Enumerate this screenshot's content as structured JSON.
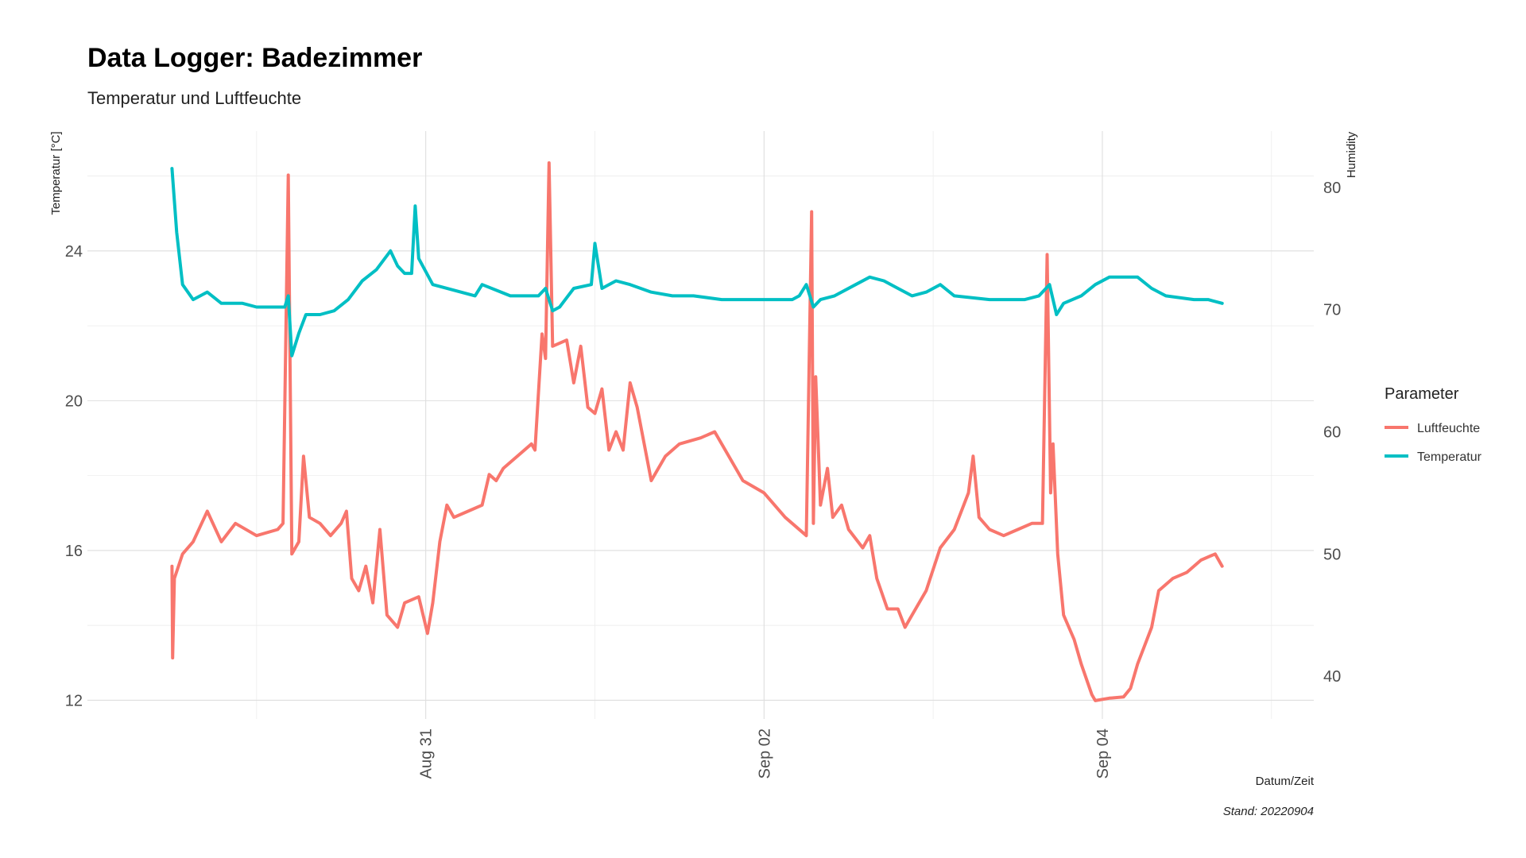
{
  "chart_data": {
    "type": "line",
    "title": "Data Logger: Badezimmer",
    "subtitle": "Temperatur und Luftfeuchte",
    "xlabel": "Datum/Zeit",
    "ylabel": "Temperatur [°C]",
    "y2label": "Humidity",
    "caption": "Stand: 20220904",
    "legend_title": "Parameter",
    "legend_position": "right",
    "grid": true,
    "x_start": "2022-08-29 12:00",
    "x_end": "2022-09-04 17:00",
    "xlim": [
      "2022-08-29 00:00",
      "2022-09-05 06:00"
    ],
    "x_ticks": [
      {
        "date": "2022-08-31",
        "label": "Aug 31"
      },
      {
        "date": "2022-09-02",
        "label": "Sep 02"
      },
      {
        "date": "2022-09-04",
        "label": "Sep 04"
      }
    ],
    "ylim": [
      11.5,
      27.2
    ],
    "y_ticks": [
      12,
      16,
      20,
      24
    ],
    "y2lim": [
      36.5,
      84.6
    ],
    "y2_ticks": [
      40,
      50,
      60,
      70,
      80
    ],
    "series": [
      {
        "name": "Luftfeuchte",
        "color": "#F8766D",
        "axis": "right",
        "points": [
          [
            "2022-08-29 12:00",
            49
          ],
          [
            "2022-08-29 12:05",
            41.5
          ],
          [
            "2022-08-29 12:20",
            48
          ],
          [
            "2022-08-29 13:30",
            50
          ],
          [
            "2022-08-29 15:00",
            51
          ],
          [
            "2022-08-29 17:00",
            53.5
          ],
          [
            "2022-08-29 19:00",
            51
          ],
          [
            "2022-08-29 21:00",
            52.5
          ],
          [
            "2022-08-30 00:00",
            51.5
          ],
          [
            "2022-08-30 03:00",
            52
          ],
          [
            "2022-08-30 03:45",
            52.5
          ],
          [
            "2022-08-30 04:30",
            81
          ],
          [
            "2022-08-30 05:00",
            50
          ],
          [
            "2022-08-30 06:00",
            51
          ],
          [
            "2022-08-30 06:40",
            58
          ],
          [
            "2022-08-30 07:30",
            53
          ],
          [
            "2022-08-30 09:00",
            52.5
          ],
          [
            "2022-08-30 10:30",
            51.5
          ],
          [
            "2022-08-30 12:00",
            52.5
          ],
          [
            "2022-08-30 12:45",
            53.5
          ],
          [
            "2022-08-30 13:30",
            48
          ],
          [
            "2022-08-30 14:30",
            47
          ],
          [
            "2022-08-30 15:30",
            49
          ],
          [
            "2022-08-30 16:30",
            46
          ],
          [
            "2022-08-30 17:30",
            52
          ],
          [
            "2022-08-30 18:30",
            45
          ],
          [
            "2022-08-30 20:00",
            44
          ],
          [
            "2022-08-30 21:00",
            46
          ],
          [
            "2022-08-30 23:00",
            46.5
          ],
          [
            "2022-08-31 00:15",
            43.5
          ],
          [
            "2022-08-31 01:00",
            46
          ],
          [
            "2022-08-31 02:00",
            51
          ],
          [
            "2022-08-31 03:00",
            54
          ],
          [
            "2022-08-31 04:00",
            53
          ],
          [
            "2022-08-31 06:00",
            53.5
          ],
          [
            "2022-08-31 08:00",
            54
          ],
          [
            "2022-08-31 09:00",
            56.5
          ],
          [
            "2022-08-31 10:00",
            56
          ],
          [
            "2022-08-31 11:00",
            57
          ],
          [
            "2022-08-31 13:00",
            58
          ],
          [
            "2022-08-31 15:00",
            59
          ],
          [
            "2022-08-31 15:30",
            58.5
          ],
          [
            "2022-08-31 16:30",
            68
          ],
          [
            "2022-08-31 17:00",
            66
          ],
          [
            "2022-08-31 17:30",
            82
          ],
          [
            "2022-08-31 18:00",
            67
          ],
          [
            "2022-08-31 20:00",
            67.5
          ],
          [
            "2022-08-31 21:00",
            64
          ],
          [
            "2022-08-31 22:00",
            67
          ],
          [
            "2022-08-31 23:00",
            62
          ],
          [
            "2022-09-01 00:00",
            61.5
          ],
          [
            "2022-09-01 01:00",
            63.5
          ],
          [
            "2022-09-01 02:00",
            58.5
          ],
          [
            "2022-09-01 03:00",
            60
          ],
          [
            "2022-09-01 04:00",
            58.5
          ],
          [
            "2022-09-01 05:00",
            64
          ],
          [
            "2022-09-01 06:00",
            62
          ],
          [
            "2022-09-01 08:00",
            56
          ],
          [
            "2022-09-01 10:00",
            58
          ],
          [
            "2022-09-01 12:00",
            59
          ],
          [
            "2022-09-01 15:00",
            59.5
          ],
          [
            "2022-09-01 17:00",
            60
          ],
          [
            "2022-09-01 18:30",
            58.5
          ],
          [
            "2022-09-01 21:00",
            56
          ],
          [
            "2022-09-02 00:00",
            55
          ],
          [
            "2022-09-02 03:00",
            53
          ],
          [
            "2022-09-02 06:00",
            51.5
          ],
          [
            "2022-09-02 06:45",
            78
          ],
          [
            "2022-09-02 07:00",
            52.5
          ],
          [
            "2022-09-02 07:20",
            64.5
          ],
          [
            "2022-09-02 08:00",
            54
          ],
          [
            "2022-09-02 09:00",
            57
          ],
          [
            "2022-09-02 09:45",
            53
          ],
          [
            "2022-09-02 11:00",
            54
          ],
          [
            "2022-09-02 12:00",
            52
          ],
          [
            "2022-09-02 14:00",
            50.5
          ],
          [
            "2022-09-02 15:00",
            51.5
          ],
          [
            "2022-09-02 16:00",
            48
          ],
          [
            "2022-09-02 17:30",
            45.5
          ],
          [
            "2022-09-02 19:00",
            45.5
          ],
          [
            "2022-09-02 20:00",
            44
          ],
          [
            "2022-09-02 21:00",
            45
          ],
          [
            "2022-09-02 23:00",
            47
          ],
          [
            "2022-09-03 01:00",
            50.5
          ],
          [
            "2022-09-03 03:00",
            52
          ],
          [
            "2022-09-03 05:00",
            55
          ],
          [
            "2022-09-03 05:40",
            58
          ],
          [
            "2022-09-03 06:30",
            53
          ],
          [
            "2022-09-03 08:00",
            52
          ],
          [
            "2022-09-03 10:00",
            51.5
          ],
          [
            "2022-09-03 12:00",
            52
          ],
          [
            "2022-09-03 14:00",
            52.5
          ],
          [
            "2022-09-03 15:30",
            52.5
          ],
          [
            "2022-09-03 16:10",
            74.5
          ],
          [
            "2022-09-03 16:40",
            55
          ],
          [
            "2022-09-03 17:00",
            59
          ],
          [
            "2022-09-03 17:40",
            50
          ],
          [
            "2022-09-03 18:30",
            45
          ],
          [
            "2022-09-03 20:00",
            43
          ],
          [
            "2022-09-03 21:00",
            41
          ],
          [
            "2022-09-03 22:30",
            38.5
          ],
          [
            "2022-09-03 23:00",
            38
          ],
          [
            "2022-09-04 01:00",
            38.2
          ],
          [
            "2022-09-04 03:00",
            38.3
          ],
          [
            "2022-09-04 04:00",
            39
          ],
          [
            "2022-09-04 05:00",
            41
          ],
          [
            "2022-09-04 07:00",
            44
          ],
          [
            "2022-09-04 08:00",
            47
          ],
          [
            "2022-09-04 10:00",
            48
          ],
          [
            "2022-09-04 12:00",
            48.5
          ],
          [
            "2022-09-04 14:00",
            49.5
          ],
          [
            "2022-09-04 16:00",
            50
          ],
          [
            "2022-09-04 17:00",
            49
          ]
        ]
      },
      {
        "name": "Temperatur",
        "color": "#00BFC4",
        "axis": "left",
        "points": [
          [
            "2022-08-29 12:00",
            26.2
          ],
          [
            "2022-08-29 12:40",
            24.5
          ],
          [
            "2022-08-29 13:30",
            23.1
          ],
          [
            "2022-08-29 15:00",
            22.7
          ],
          [
            "2022-08-29 17:00",
            22.9
          ],
          [
            "2022-08-29 19:00",
            22.6
          ],
          [
            "2022-08-29 22:00",
            22.6
          ],
          [
            "2022-08-30 00:00",
            22.5
          ],
          [
            "2022-08-30 03:00",
            22.5
          ],
          [
            "2022-08-30 04:00",
            22.5
          ],
          [
            "2022-08-30 04:30",
            22.8
          ],
          [
            "2022-08-30 05:00",
            21.2
          ],
          [
            "2022-08-30 06:00",
            21.8
          ],
          [
            "2022-08-30 07:00",
            22.3
          ],
          [
            "2022-08-30 09:00",
            22.3
          ],
          [
            "2022-08-30 11:00",
            22.4
          ],
          [
            "2022-08-30 13:00",
            22.7
          ],
          [
            "2022-08-30 15:00",
            23.2
          ],
          [
            "2022-08-30 17:00",
            23.5
          ],
          [
            "2022-08-30 19:00",
            24
          ],
          [
            "2022-08-30 20:00",
            23.6
          ],
          [
            "2022-08-30 21:00",
            23.4
          ],
          [
            "2022-08-30 22:00",
            23.4
          ],
          [
            "2022-08-30 22:30",
            25.2
          ],
          [
            "2022-08-30 23:00",
            23.8
          ],
          [
            "2022-08-31 01:00",
            23.1
          ],
          [
            "2022-08-31 05:00",
            22.9
          ],
          [
            "2022-08-31 07:00",
            22.8
          ],
          [
            "2022-08-31 08:00",
            23.1
          ],
          [
            "2022-08-31 12:00",
            22.8
          ],
          [
            "2022-08-31 16:00",
            22.8
          ],
          [
            "2022-08-31 17:00",
            23
          ],
          [
            "2022-08-31 18:00",
            22.4
          ],
          [
            "2022-08-31 19:00",
            22.5
          ],
          [
            "2022-08-31 21:00",
            23
          ],
          [
            "2022-08-31 23:30",
            23.1
          ],
          [
            "2022-09-01 00:00",
            24.2
          ],
          [
            "2022-09-01 01:00",
            23
          ],
          [
            "2022-09-01 03:00",
            23.2
          ],
          [
            "2022-09-01 05:00",
            23.1
          ],
          [
            "2022-09-01 08:00",
            22.9
          ],
          [
            "2022-09-01 11:00",
            22.8
          ],
          [
            "2022-09-01 14:00",
            22.8
          ],
          [
            "2022-09-01 18:00",
            22.7
          ],
          [
            "2022-09-02 00:00",
            22.7
          ],
          [
            "2022-09-02 04:00",
            22.7
          ],
          [
            "2022-09-02 05:00",
            22.8
          ],
          [
            "2022-09-02 06:00",
            23.1
          ],
          [
            "2022-09-02 07:00",
            22.5
          ],
          [
            "2022-09-02 08:00",
            22.7
          ],
          [
            "2022-09-02 10:00",
            22.8
          ],
          [
            "2022-09-02 13:00",
            23.1
          ],
          [
            "2022-09-02 15:00",
            23.3
          ],
          [
            "2022-09-02 17:00",
            23.2
          ],
          [
            "2022-09-02 19:00",
            23
          ],
          [
            "2022-09-02 21:00",
            22.8
          ],
          [
            "2022-09-02 23:00",
            22.9
          ],
          [
            "2022-09-03 01:00",
            23.1
          ],
          [
            "2022-09-03 03:00",
            22.8
          ],
          [
            "2022-09-03 08:00",
            22.7
          ],
          [
            "2022-09-03 13:00",
            22.7
          ],
          [
            "2022-09-03 15:00",
            22.8
          ],
          [
            "2022-09-03 16:30",
            23.1
          ],
          [
            "2022-09-03 17:30",
            22.3
          ],
          [
            "2022-09-03 18:30",
            22.6
          ],
          [
            "2022-09-03 21:00",
            22.8
          ],
          [
            "2022-09-03 23:00",
            23.1
          ],
          [
            "2022-09-04 01:00",
            23.3
          ],
          [
            "2022-09-04 05:00",
            23.3
          ],
          [
            "2022-09-04 07:00",
            23
          ],
          [
            "2022-09-04 09:00",
            22.8
          ],
          [
            "2022-09-04 13:00",
            22.7
          ],
          [
            "2022-09-04 15:00",
            22.7
          ],
          [
            "2022-09-04 17:00",
            22.6
          ]
        ]
      }
    ]
  }
}
